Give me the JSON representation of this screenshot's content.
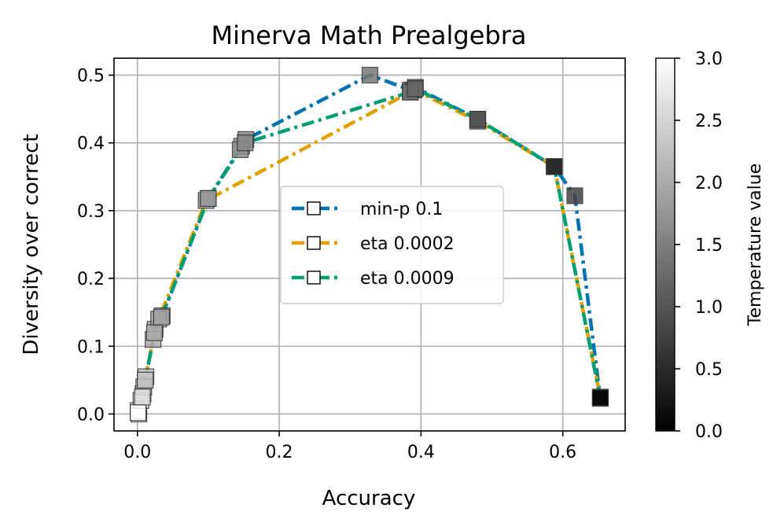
{
  "chart_data": {
    "type": "line",
    "title": "Minerva Math Prealgebra",
    "xlabel": "Accuracy",
    "ylabel": "Diversity over correct",
    "xlim": [
      -0.033,
      0.688
    ],
    "ylim": [
      -0.025,
      0.525
    ],
    "xticks": [
      0.0,
      0.2,
      0.4,
      0.6
    ],
    "xtick_labels": [
      "0.0",
      "0.2",
      "0.4",
      "0.6"
    ],
    "yticks": [
      0.0,
      0.1,
      0.2,
      0.3,
      0.4,
      0.5
    ],
    "ytick_labels": [
      "0.0",
      "0.1",
      "0.2",
      "0.3",
      "0.4",
      "0.5"
    ],
    "grid": true,
    "legend_position": "center",
    "marker": "square",
    "colorbar": {
      "label": "Temperature value",
      "range": [
        0.0,
        3.0
      ],
      "ticks": [
        0.0,
        0.5,
        1.0,
        1.5,
        2.0,
        2.5,
        3.0
      ],
      "tick_labels": [
        "0.0",
        "0.5",
        "1.0",
        "1.5",
        "2.0",
        "2.5",
        "3.0"
      ],
      "colormap": "gray"
    },
    "series": [
      {
        "name": "min-p 0.1",
        "color": "#0072B2",
        "linestyle": "dashdot",
        "x": [
          0.002,
          0.008,
          0.012,
          0.025,
          0.035,
          0.1,
          0.147,
          0.153,
          0.328,
          0.385,
          0.392,
          0.48,
          0.588,
          0.617,
          0.653
        ],
        "y": [
          0.0,
          0.03,
          0.055,
          0.125,
          0.145,
          0.318,
          0.395,
          0.405,
          0.5,
          0.478,
          0.482,
          0.435,
          0.365,
          0.322,
          0.023
        ],
        "temperature": [
          3.0,
          2.6,
          2.3,
          2.0,
          1.9,
          1.8,
          1.7,
          1.6,
          1.4,
          1.3,
          1.2,
          1.0,
          0.5,
          0.8,
          0.1
        ]
      },
      {
        "name": "eta 0.0002",
        "color": "#E69F00",
        "linestyle": "dashdot",
        "x": [
          0.001,
          0.005,
          0.009,
          0.022,
          0.03,
          0.097,
          0.385,
          0.39,
          0.48,
          0.588,
          0.653
        ],
        "y": [
          0.005,
          0.02,
          0.04,
          0.11,
          0.14,
          0.315,
          0.475,
          0.478,
          0.432,
          0.365,
          0.025
        ],
        "temperature": [
          3.0,
          2.6,
          2.3,
          2.0,
          1.9,
          1.8,
          1.3,
          1.2,
          1.0,
          0.5,
          0.1
        ]
      },
      {
        "name": "eta 0.0009",
        "color": "#009E73",
        "linestyle": "dashdot",
        "x": [
          0.001,
          0.007,
          0.011,
          0.024,
          0.034,
          0.1,
          0.145,
          0.152,
          0.385,
          0.392,
          0.48,
          0.588,
          0.653
        ],
        "y": [
          0.002,
          0.025,
          0.05,
          0.12,
          0.143,
          0.318,
          0.39,
          0.4,
          0.475,
          0.48,
          0.435,
          0.365,
          0.024
        ],
        "temperature": [
          3.0,
          2.6,
          2.3,
          2.0,
          1.9,
          1.8,
          1.7,
          1.6,
          1.3,
          1.2,
          1.0,
          0.5,
          0.1
        ]
      }
    ]
  }
}
